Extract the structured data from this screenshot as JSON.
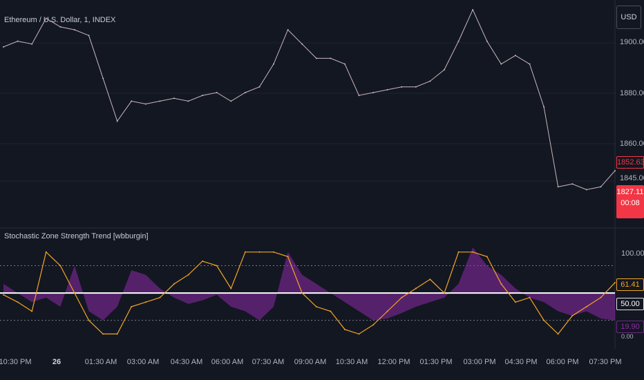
{
  "main_title": "Ethereum / U.S. Dollar, 1, INDEX",
  "currency": "USD",
  "indicator_title": "Stochastic Zone Strength Trend [wbburgin]",
  "colors": {
    "background": "#131722",
    "price_line": "#c9b8bd",
    "stoch_line": "#f5a623",
    "zone_fill": "#8e2aa8",
    "mid_line": "#ffffff",
    "price_tag": "#f23645"
  },
  "price_axis": {
    "ticks": [
      "1900.00",
      "1880.00",
      "1860.00",
      "1845.00"
    ],
    "current_price": "1852.63",
    "last_price": "1827.11",
    "countdown": "00:08"
  },
  "osc_axis": {
    "ticks": [
      "100.00",
      "50.00"
    ],
    "stoch_value": "61.41",
    "mid_value": "50.00",
    "zone_value": "19.90",
    "bottom_value": "0.00"
  },
  "x_axis": {
    "labels": [
      "10:30 PM",
      "26",
      "01:30 AM",
      "03:00 AM",
      "04:30 AM",
      "06:00 AM",
      "07:30 AM",
      "09:00 AM",
      "10:30 AM",
      "12:00 PM",
      "01:30 PM",
      "03:00 PM",
      "04:30 PM",
      "06:00 PM",
      "07:30 PM"
    ]
  },
  "chart_data": [
    {
      "type": "line",
      "title": "Ethereum / U.S. Dollar, 1, INDEX",
      "x": [
        "10:30 PM",
        "11:00 PM",
        "11:30 PM",
        "12:00 AM",
        "12:30 AM",
        "01:00 AM",
        "01:30 AM",
        "02:00 AM",
        "02:30 AM",
        "03:00 AM",
        "03:30 AM",
        "04:00 AM",
        "04:30 AM",
        "05:00 AM",
        "05:30 AM",
        "06:00 AM",
        "06:30 AM",
        "07:00 AM",
        "07:30 AM",
        "08:00 AM",
        "08:30 AM",
        "09:00 AM",
        "09:30 AM",
        "10:00 AM",
        "10:30 AM",
        "11:00 AM",
        "11:30 AM",
        "12:00 PM",
        "12:30 PM",
        "01:00 PM",
        "01:30 PM",
        "02:00 PM",
        "02:30 PM",
        "03:00 PM",
        "03:30 PM",
        "04:00 PM",
        "04:30 PM",
        "05:00 PM",
        "05:30 PM",
        "06:00 PM",
        "06:30 PM",
        "07:00 PM",
        "07:30 PM",
        "08:00 PM"
      ],
      "series": [
        {
          "values": [
            1896,
            1898,
            1897,
            1906,
            1903,
            1902,
            1900,
            1885,
            1870,
            1877,
            1876,
            1877,
            1878,
            1877,
            1879,
            1880,
            1877,
            1880,
            1882,
            1890,
            1902,
            1897,
            1892,
            1892,
            1890,
            1879,
            1880,
            1881,
            1882,
            1882,
            1884,
            1888,
            1898,
            1909,
            1898,
            1890,
            1893,
            1890,
            1875,
            1847,
            1848,
            1846,
            1847,
            1852.63
          ]
        }
      ],
      "ylim": [
        1835,
        1910
      ]
    },
    {
      "type": "line",
      "title": "Stochastic Zone Strength Trend [wbburgin]",
      "x": [
        "10:30 PM",
        "11:00 PM",
        "11:30 PM",
        "12:00 AM",
        "12:30 AM",
        "01:00 AM",
        "01:30 AM",
        "02:00 AM",
        "02:30 AM",
        "03:00 AM",
        "03:30 AM",
        "04:00 AM",
        "04:30 AM",
        "05:00 AM",
        "05:30 AM",
        "06:00 AM",
        "06:30 AM",
        "07:00 AM",
        "07:30 AM",
        "08:00 AM",
        "08:30 AM",
        "09:00 AM",
        "09:30 AM",
        "10:00 AM",
        "10:30 AM",
        "11:00 AM",
        "11:30 AM",
        "12:00 PM",
        "12:30 PM",
        "01:00 PM",
        "01:30 PM",
        "02:00 PM",
        "02:30 PM",
        "03:00 PM",
        "03:30 PM",
        "04:00 PM",
        "04:30 PM",
        "05:00 PM",
        "05:30 PM",
        "06:00 PM",
        "06:30 PM",
        "07:00 PM",
        "07:30 PM",
        "08:00 PM"
      ],
      "series": [
        {
          "values": [
            48,
            40,
            30,
            95,
            80,
            50,
            20,
            5,
            5,
            35,
            40,
            45,
            60,
            70,
            85,
            80,
            55,
            95,
            95,
            95,
            90,
            50,
            35,
            30,
            10,
            5,
            15,
            30,
            45,
            55,
            65,
            50,
            95,
            95,
            90,
            60,
            40,
            45,
            20,
            5,
            25,
            35,
            45,
            61.41
          ]
        },
        {
          "values": [
            60,
            50,
            40,
            45,
            35,
            80,
            30,
            20,
            35,
            75,
            70,
            55,
            45,
            38,
            42,
            48,
            35,
            30,
            20,
            35,
            95,
            70,
            60,
            50,
            40,
            30,
            20,
            22,
            28,
            35,
            40,
            45,
            60,
            100,
            80,
            70,
            55,
            45,
            40,
            30,
            25,
            30,
            22,
            19.9
          ]
        }
      ],
      "ylim": [
        0,
        110
      ]
    }
  ]
}
